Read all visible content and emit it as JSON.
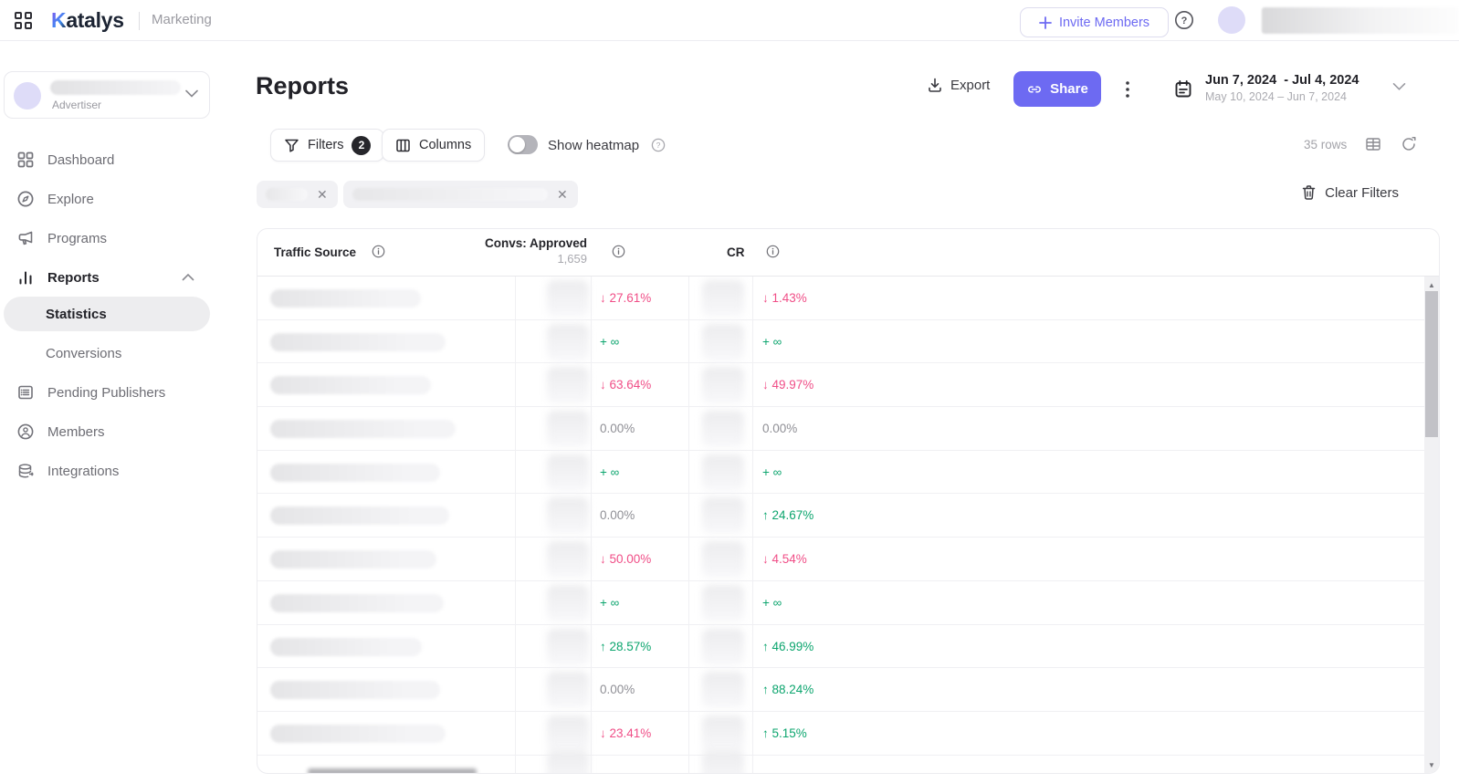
{
  "topbar": {
    "logo_first_letter": "K",
    "logo_rest": "atalys",
    "product": "Marketing",
    "invite_label": "Invite Members",
    "icons": [
      "apps-grid-icon",
      "help-icon",
      "avatar"
    ]
  },
  "sidebar": {
    "advertiser_role": "Advertiser",
    "items": [
      {
        "label": "Dashboard",
        "icon": "dashboard-icon"
      },
      {
        "label": "Explore",
        "icon": "compass-icon"
      },
      {
        "label": "Programs",
        "icon": "megaphone-icon"
      },
      {
        "label": "Reports",
        "icon": "bar-chart-icon",
        "expanded": true
      },
      {
        "label": "Pending Publishers",
        "icon": "list-icon"
      },
      {
        "label": "Members",
        "icon": "member-icon"
      },
      {
        "label": "Integrations",
        "icon": "integrations-icon"
      }
    ],
    "reports_children": [
      {
        "label": "Statistics",
        "active": true
      },
      {
        "label": "Conversions",
        "active": false
      }
    ]
  },
  "page": {
    "title": "Reports",
    "export_label": "Export",
    "share_label": "Share",
    "date_primary": "Jun 7, 2024  - Jul 4, 2024",
    "date_comparison": "May 10, 2024 – Jun 7, 2024"
  },
  "controls": {
    "filters_label": "Filters",
    "filters_count": "2",
    "columns_label": "Columns",
    "heatmap_label": "Show heatmap",
    "heatmap_on": false,
    "rows_count": "35 rows",
    "clear_filters_label": "Clear Filters"
  },
  "table": {
    "header": {
      "traffic": "Traffic Source",
      "convs": "Convs: Approved",
      "convs_total": "1,659",
      "cr": "CR"
    },
    "rows": [
      {
        "name_w": 165,
        "convs": {
          "dir": "down",
          "text": "27.61%"
        },
        "cr": {
          "dir": "down",
          "text": "1.43%"
        }
      },
      {
        "name_w": 192,
        "convs": {
          "dir": "inf",
          "text": "∞"
        },
        "cr": {
          "dir": "inf",
          "text": "∞"
        }
      },
      {
        "name_w": 176,
        "convs": {
          "dir": "down",
          "text": "63.64%"
        },
        "cr": {
          "dir": "down",
          "text": "49.97%"
        }
      },
      {
        "name_w": 203,
        "convs": {
          "dir": "flat",
          "text": "0.00%"
        },
        "cr": {
          "dir": "flat",
          "text": "0.00%"
        }
      },
      {
        "name_w": 186,
        "convs": {
          "dir": "inf",
          "text": "∞"
        },
        "cr": {
          "dir": "inf",
          "text": "∞"
        }
      },
      {
        "name_w": 196,
        "convs": {
          "dir": "flat",
          "text": "0.00%"
        },
        "cr": {
          "dir": "up",
          "text": "24.67%"
        }
      },
      {
        "name_w": 182,
        "convs": {
          "dir": "down",
          "text": "50.00%"
        },
        "cr": {
          "dir": "down",
          "text": "4.54%"
        }
      },
      {
        "name_w": 190,
        "convs": {
          "dir": "inf",
          "text": "∞"
        },
        "cr": {
          "dir": "inf",
          "text": "∞"
        }
      },
      {
        "name_w": 166,
        "convs": {
          "dir": "up",
          "text": "28.57%"
        },
        "cr": {
          "dir": "up",
          "text": "46.99%"
        }
      },
      {
        "name_w": 186,
        "convs": {
          "dir": "flat",
          "text": "0.00%"
        },
        "cr": {
          "dir": "up",
          "text": "88.24%"
        }
      },
      {
        "name_w": 192,
        "convs": {
          "dir": "down",
          "text": "23.41%"
        },
        "cr": {
          "dir": "up",
          "text": "5.15%"
        }
      }
    ]
  },
  "colors": {
    "accent": "#6d6af2",
    "negative": "#f04e87",
    "positive": "#0ca56e",
    "neutral": "#8f8f95"
  }
}
